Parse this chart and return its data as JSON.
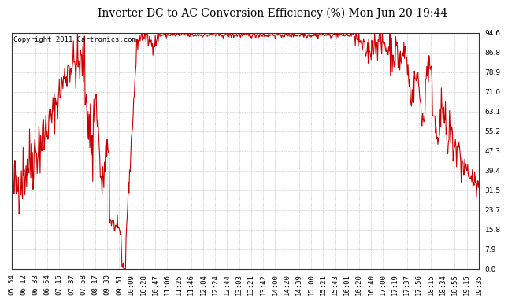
{
  "title": "Inverter DC to AC Conversion Efficiency (%) Mon Jun 20 19:44",
  "copyright_text": "Copyright 2011 Cartronics.com",
  "line_color": "#cc0000",
  "background_color": "#ffffff",
  "plot_background": "#ffffff",
  "grid_color": "#bbbbbb",
  "yticks": [
    0.0,
    7.9,
    15.8,
    23.7,
    31.5,
    39.4,
    47.3,
    55.2,
    63.1,
    71.0,
    78.9,
    86.8,
    94.6
  ],
  "ymin": 0.0,
  "ymax": 94.6,
  "xtick_labels": [
    "05:54",
    "06:12",
    "06:33",
    "06:54",
    "07:15",
    "07:37",
    "07:58",
    "08:17",
    "09:30",
    "09:51",
    "10:09",
    "10:28",
    "10:47",
    "11:06",
    "11:25",
    "11:46",
    "12:04",
    "12:24",
    "12:44",
    "13:03",
    "13:21",
    "13:42",
    "14:00",
    "14:20",
    "14:39",
    "15:00",
    "15:21",
    "15:43",
    "16:01",
    "16:20",
    "16:40",
    "17:00",
    "17:19",
    "17:37",
    "17:56",
    "18:15",
    "18:34",
    "18:55",
    "19:15",
    "19:35"
  ],
  "title_fontsize": 10,
  "copyright_fontsize": 6.5,
  "tick_fontsize": 6.5,
  "line_width": 0.8
}
